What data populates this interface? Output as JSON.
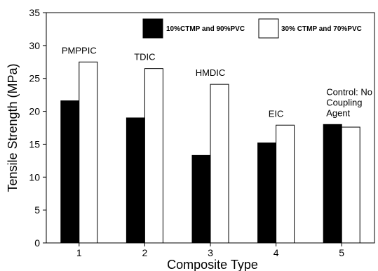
{
  "chart_data": {
    "type": "bar",
    "title": "",
    "xlabel": "Composite Type",
    "ylabel": "Tensile Strength (MPa)",
    "ylim": [
      0,
      35
    ],
    "yticks": [
      "0",
      "5",
      "10",
      "15",
      "20",
      "25",
      "30",
      "35"
    ],
    "categories": [
      "1",
      "2",
      "3",
      "4",
      "5"
    ],
    "series": [
      {
        "name": "10%CTMP and 90%PVC",
        "values": [
          21.6,
          19.0,
          13.3,
          15.2,
          18.0
        ],
        "color": "#000000"
      },
      {
        "name": "30% CTMP and 70%PVC",
        "values": [
          27.5,
          26.5,
          24.1,
          17.9,
          17.6
        ],
        "color": "#ffffff"
      }
    ],
    "annotations": [
      {
        "category": "1",
        "lines": [
          "PMPPIC"
        ]
      },
      {
        "category": "2",
        "lines": [
          "TDIC"
        ]
      },
      {
        "category": "3",
        "lines": [
          "HMDIC"
        ]
      },
      {
        "category": "4",
        "lines": [
          "EIC"
        ]
      },
      {
        "category": "5",
        "lines": [
          "Control: No",
          "Coupling",
          "Agent"
        ]
      }
    ],
    "legend_position": "top-right",
    "grid": false
  }
}
